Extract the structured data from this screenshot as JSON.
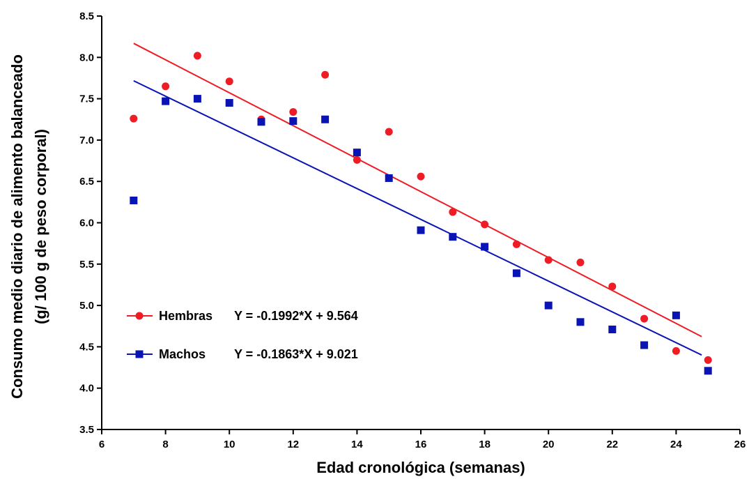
{
  "chart_data": {
    "type": "scatter",
    "title": "",
    "xlabel": "Edad cronológica (semanas)",
    "ylabel_line1": "Consumo medio diario de alimento balanceado",
    "ylabel_line2": "(g/ 100 g de peso corporal)",
    "xlim": [
      6,
      26
    ],
    "ylim": [
      3.5,
      8.5
    ],
    "x_ticks": [
      "6",
      "8",
      "10",
      "12",
      "14",
      "16",
      "18",
      "20",
      "22",
      "24",
      "26"
    ],
    "y_ticks": [
      "3.5",
      "4.0",
      "4.5",
      "5.0",
      "5.5",
      "6.0",
      "6.5",
      "7.0",
      "7.5",
      "8.0",
      "8.5"
    ],
    "grid": false,
    "legend_position": "lower-left",
    "series": [
      {
        "name": "Hembras",
        "equation": "Y = -0.1992*X + 9.564",
        "color": "#ee1c24",
        "marker": "circle",
        "x": [
          7,
          8,
          9,
          10,
          11,
          12,
          13,
          14,
          15,
          16,
          17,
          18,
          19,
          20,
          21,
          22,
          23,
          24,
          25
        ],
        "y": [
          7.26,
          7.65,
          8.02,
          7.71,
          7.25,
          7.34,
          7.79,
          6.76,
          7.1,
          6.56,
          6.13,
          5.98,
          5.74,
          5.55,
          5.52,
          5.23,
          4.84,
          4.45,
          4.34
        ],
        "fit": {
          "slope": -0.1992,
          "intercept": 9.564,
          "x_range": [
            7,
            24.8
          ]
        }
      },
      {
        "name": "Machos",
        "equation": "Y = -0.1863*X + 9.021",
        "color": "#0a14b4",
        "marker": "square",
        "x": [
          7,
          8,
          9,
          10,
          11,
          12,
          13,
          14,
          15,
          16,
          17,
          18,
          19,
          20,
          21,
          22,
          23,
          24,
          25
        ],
        "y": [
          6.27,
          7.47,
          7.5,
          7.45,
          7.22,
          7.23,
          7.25,
          6.85,
          6.54,
          5.91,
          5.83,
          5.71,
          5.39,
          5.0,
          4.8,
          4.71,
          4.52,
          4.88,
          4.21
        ],
        "fit": {
          "slope": -0.1863,
          "intercept": 9.021,
          "x_range": [
            7,
            24.8
          ]
        }
      }
    ]
  }
}
